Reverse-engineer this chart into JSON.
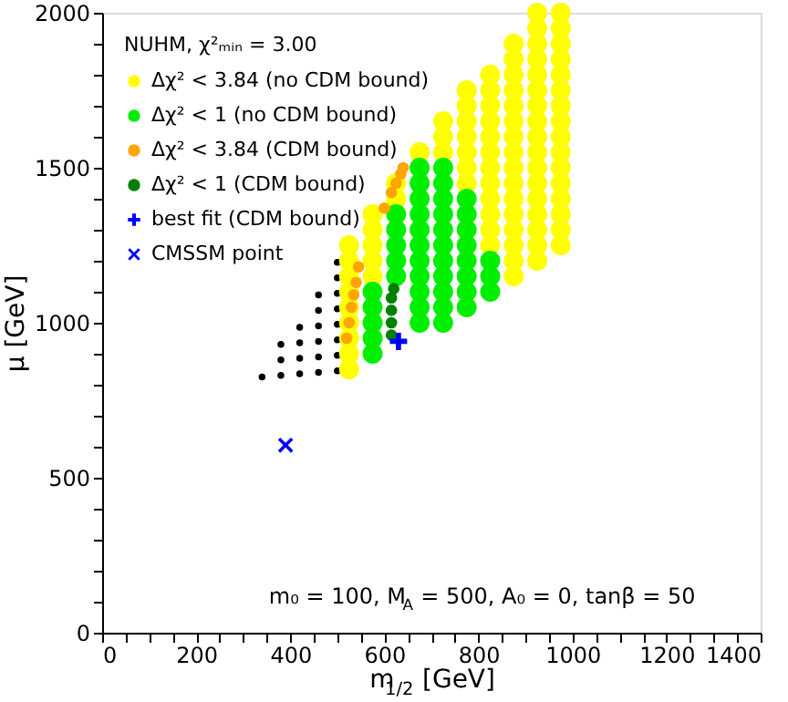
{
  "chart_data": {
    "type": "scatter",
    "xlabel": "m$_{1/2}$ [GeV]",
    "ylabel": "μ [GeV]",
    "legend_title": "NUHM, χ²ₘᵢₙ = 3.00",
    "legend": "top left",
    "grid": false,
    "annotations": [
      {
        "text": "m₀ = 100, M$_{A}$ = 500, A₀ = 0, tanβ = 50"
      }
    ],
    "xlim": [
      0,
      1400
    ],
    "ylim": [
      0,
      2000
    ],
    "xticks": [
      0,
      {
        "value": 50,
        "label": null
      },
      {
        "value": 100,
        "label": null
      },
      {
        "value": 150,
        "label": null
      },
      200,
      {
        "value": 250,
        "label": null
      },
      {
        "value": 300,
        "label": null
      },
      {
        "value": 350,
        "label": null
      },
      400,
      {
        "value": 450,
        "label": null
      },
      {
        "value": 500,
        "label": null
      },
      {
        "value": 550,
        "label": null
      },
      600,
      {
        "value": 650,
        "label": null
      },
      {
        "value": 700,
        "label": null
      },
      {
        "value": 750,
        "label": null
      },
      800,
      {
        "value": 850,
        "label": null
      },
      {
        "value": 900,
        "label": null
      },
      {
        "value": 950,
        "label": null
      },
      1000,
      {
        "value": 1050,
        "label": null
      },
      {
        "value": 1100,
        "label": null
      },
      {
        "value": 1150,
        "label": null
      },
      1200,
      {
        "value": 1250,
        "label": null
      },
      {
        "value": 1300,
        "label": null
      },
      {
        "value": 1350,
        "label": null
      },
      1400
    ],
    "yticks": [
      0,
      {
        "value": 100,
        "label": null
      },
      {
        "value": 200,
        "label": null
      },
      {
        "value": 300,
        "label": null
      },
      {
        "value": 400,
        "label": null
      },
      500,
      {
        "value": 600,
        "label": null
      },
      {
        "value": 700,
        "label": null
      },
      {
        "value": 800,
        "label": null
      },
      {
        "value": 900,
        "label": null
      },
      1000,
      {
        "value": 1100,
        "label": null
      },
      {
        "value": 1200,
        "label": null
      },
      {
        "value": 1300,
        "label": null
      },
      {
        "value": 1400,
        "label": null
      },
      1500,
      {
        "value": 1600,
        "label": null
      },
      {
        "value": 1700,
        "label": null
      },
      {
        "value": 1800,
        "label": null
      },
      {
        "value": 1900,
        "label": null
      },
      2000
    ],
    "series": [
      {
        "color": "#000000",
        "marker": "circle",
        "x": [
          340,
          380,
          380,
          380,
          420,
          420,
          420,
          420,
          460,
          460,
          460,
          460,
          460,
          460,
          500,
          500,
          500,
          500,
          500,
          500,
          500,
          500
        ],
        "values": [
          825,
          830,
          880,
          930,
          835,
          885,
          935,
          985,
          840,
          890,
          940,
          990,
          1040,
          1090,
          845,
          895,
          945,
          995,
          1045,
          1095,
          1145,
          1195
        ]
      },
      {
        "name": "Δχ² < 3.84 (no CDM bound)",
        "color": "#ffff00",
        "marker": "circle",
        "x": [
          525,
          525,
          525,
          525,
          525,
          525,
          525,
          525,
          525,
          575,
          575,
          575,
          575,
          575,
          625,
          625,
          675,
          725,
          725,
          725,
          775,
          775,
          775,
          775,
          775,
          775,
          775,
          825,
          825,
          825,
          825,
          825,
          825,
          825,
          825,
          825,
          825,
          825,
          825,
          875,
          875,
          875,
          875,
          875,
          875,
          875,
          875,
          875,
          875,
          875,
          875,
          875,
          875,
          875,
          875,
          925,
          925,
          925,
          925,
          925,
          925,
          925,
          925,
          925,
          925,
          925,
          925,
          925,
          925,
          925,
          925,
          925,
          975,
          975,
          975,
          975,
          975,
          975,
          975,
          975,
          975,
          975,
          975,
          975,
          975,
          975,
          975,
          975
        ],
        "values": [
          850,
          900,
          950,
          1000,
          1050,
          1100,
          1150,
          1200,
          1250,
          1150,
          1200,
          1250,
          1300,
          1350,
          1400,
          1450,
          1550,
          1550,
          1600,
          1650,
          1450,
          1500,
          1550,
          1600,
          1650,
          1700,
          1750,
          1250,
          1300,
          1350,
          1400,
          1450,
          1500,
          1550,
          1600,
          1650,
          1700,
          1750,
          1800,
          1150,
          1200,
          1250,
          1300,
          1350,
          1400,
          1450,
          1500,
          1550,
          1600,
          1650,
          1700,
          1750,
          1800,
          1850,
          1900,
          1200,
          1250,
          1300,
          1350,
          1400,
          1450,
          1500,
          1550,
          1600,
          1650,
          1700,
          1750,
          1800,
          1850,
          1900,
          1950,
          2000,
          1250,
          1300,
          1350,
          1400,
          1450,
          1500,
          1550,
          1600,
          1650,
          1700,
          1750,
          1800,
          1850,
          1900,
          1950,
          2000
        ]
      },
      {
        "name": "Δχ² < 1 (no CDM bound)",
        "color": "#00ee00",
        "marker": "circle",
        "x": [
          575,
          575,
          575,
          575,
          575,
          625,
          625,
          625,
          625,
          625,
          675,
          675,
          675,
          675,
          675,
          675,
          675,
          675,
          675,
          675,
          675,
          725,
          725,
          725,
          725,
          725,
          725,
          725,
          725,
          725,
          725,
          725,
          775,
          775,
          775,
          775,
          775,
          775,
          775,
          775,
          825,
          825,
          825
        ],
        "values": [
          900,
          950,
          1000,
          1050,
          1100,
          1150,
          1200,
          1250,
          1300,
          1350,
          1000,
          1050,
          1100,
          1150,
          1200,
          1250,
          1300,
          1350,
          1400,
          1450,
          1500,
          1000,
          1050,
          1100,
          1150,
          1200,
          1250,
          1300,
          1350,
          1400,
          1450,
          1500,
          1050,
          1100,
          1150,
          1200,
          1250,
          1300,
          1350,
          1400,
          1100,
          1150,
          1200
        ]
      },
      {
        "name": "Δχ² < 3.84 (CDM bound)",
        "marker": "circle",
        "color": "#ffa500",
        "x": [
          520,
          525,
          530,
          535,
          540,
          545,
          600,
          615,
          625,
          635,
          640
        ],
        "values": [
          950,
          1000,
          1050,
          1090,
          1130,
          1180,
          1370,
          1420,
          1450,
          1480,
          1500
        ]
      },
      {
        "name": "Δχ² < 1 (CDM bound)",
        "marker": "circle",
        "color": "#008000",
        "x": [
          615,
          615,
          615,
          615,
          620
        ],
        "values": [
          960,
          1000,
          1040,
          1080,
          1110
        ]
      },
      {
        "name": "best fit (CDM bound)",
        "marker": "cross",
        "color": "#0000ff",
        "x": [
          630
        ],
        "values": [
          940
        ]
      },
      {
        "name": "CMSSM point",
        "marker": "x",
        "color": "#0000ff",
        "x": [
          390
        ],
        "values": [
          605
        ]
      }
    ]
  }
}
